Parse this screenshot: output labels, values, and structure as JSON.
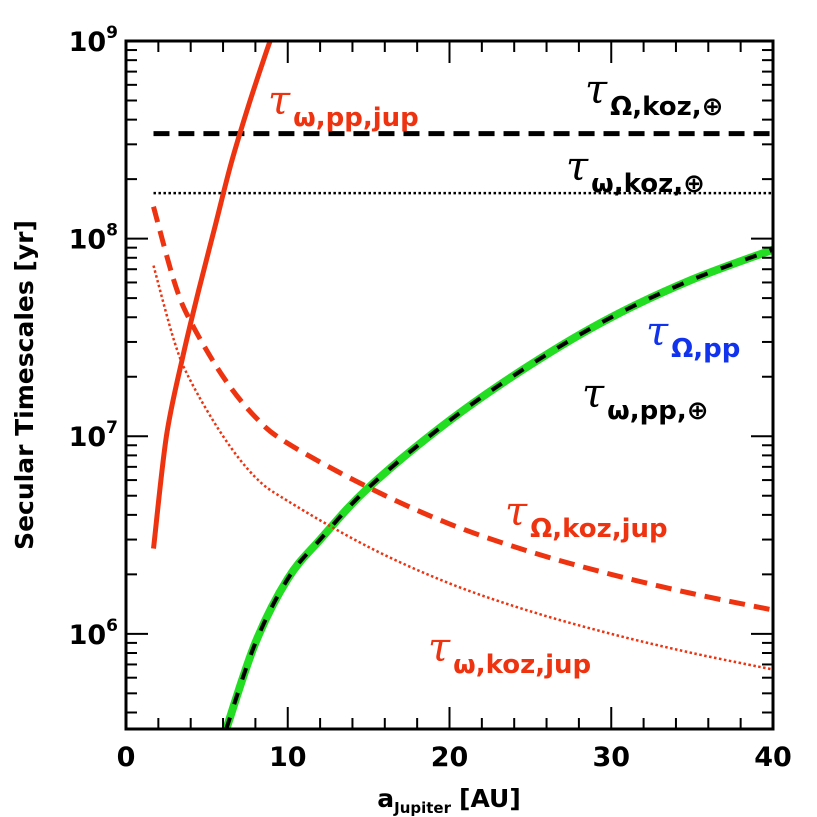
{
  "chart_data": {
    "type": "line",
    "xlabel": "a",
    "xlabel_sub": "Jupiter",
    "xlabel_unit": "[AU]",
    "ylabel": "Secular Timescales [yr]",
    "xlim": [
      0,
      40
    ],
    "ylim": [
      330000,
      1000000000
    ],
    "yscale": "log",
    "x_ticks": [
      0,
      10,
      20,
      30,
      40
    ],
    "x_tick_labels": [
      "0",
      "10",
      "20",
      "30",
      "40"
    ],
    "y_ticks": [
      1000000,
      10000000,
      100000000,
      1000000000
    ],
    "y_tick_labels": [
      {
        "base": "10",
        "exp": "6"
      },
      {
        "base": "10",
        "exp": "7"
      },
      {
        "base": "10",
        "exp": "8"
      },
      {
        "base": "10",
        "exp": "9"
      }
    ],
    "grid": false,
    "series": [
      {
        "key": "omega_pp_jup",
        "color": "#ee3311",
        "style": "solid",
        "x": [
          1.7,
          2.5,
          3.5,
          4.5,
          5.5,
          6.5,
          7.5,
          8.5,
          9.0
        ],
        "y": [
          2700000,
          10000000,
          25000000,
          55000000,
          115000000,
          240000000,
          450000000,
          800000000,
          1050000000
        ]
      },
      {
        "key": "Omega_koz_jup",
        "color": "#ee3311",
        "style": "dashed",
        "x": [
          1.7,
          3,
          4,
          6,
          8,
          10,
          15,
          20,
          25,
          30,
          35,
          40
        ],
        "y": [
          145000000,
          60000000,
          38000000,
          20000000,
          12500000,
          9200000,
          5500000,
          3600000,
          2600000,
          2000000,
          1600000,
          1320000
        ]
      },
      {
        "key": "omega_koz_jup",
        "color": "#ee3311",
        "style": "dotted",
        "x": [
          1.7,
          3,
          4,
          6,
          8,
          10,
          15,
          20,
          25,
          30,
          35,
          40
        ],
        "y": [
          73000000,
          30000000,
          19000000,
          10000000,
          6200000,
          4700000,
          2750000,
          1800000,
          1300000,
          1000000,
          800000,
          660000
        ]
      },
      {
        "key": "Omega_koz_earth",
        "color": "#000000",
        "style": "dashed",
        "x": [
          1.7,
          40
        ],
        "y": [
          340000000,
          340000000
        ]
      },
      {
        "key": "omega_koz_earth",
        "color": "#000000",
        "style": "dotted",
        "x": [
          1.7,
          40
        ],
        "y": [
          170000000,
          170000000
        ]
      },
      {
        "key": "Omega_pp",
        "color": "#22dd22",
        "style": "solid-thick",
        "x": [
          6.2,
          8,
          10,
          12,
          15,
          20,
          25,
          30,
          35,
          40
        ],
        "y": [
          330000,
          900000,
          1900000,
          3000000,
          5500000,
          12000000,
          23000000,
          40000000,
          62000000,
          88000000
        ]
      },
      {
        "key": "omega_pp_earth",
        "color": "#000000",
        "style": "dashed-overlay",
        "x": [
          6.2,
          8,
          10,
          12,
          15,
          20,
          25,
          30,
          35,
          40
        ],
        "y": [
          330000,
          900000,
          1900000,
          3000000,
          5500000,
          12000000,
          23000000,
          40000000,
          62000000,
          88000000
        ]
      }
    ],
    "annotations": [
      {
        "key": "omega_pp_jup",
        "tau": "τ",
        "sub": "ω,pp,jup",
        "color": "#ee3311"
      },
      {
        "key": "Omega_koz_earth",
        "tau": "τ",
        "sub": "Ω,koz,⊕",
        "color": "#000000"
      },
      {
        "key": "omega_koz_earth",
        "tau": "τ",
        "sub": "ω,koz,⊕",
        "color": "#000000"
      },
      {
        "key": "Omega_pp",
        "tau": "τ",
        "sub": "Ω,pp",
        "color": "#1133ee"
      },
      {
        "key": "omega_pp_earth",
        "tau": "τ",
        "sub": "ω,pp,⊕",
        "color": "#000000"
      },
      {
        "key": "Omega_koz_jup",
        "tau": "τ",
        "sub": "Ω,koz,jup",
        "color": "#ee3311"
      },
      {
        "key": "omega_koz_jup",
        "tau": "τ",
        "sub": "ω,koz,jup",
        "color": "#ee3311"
      }
    ]
  }
}
